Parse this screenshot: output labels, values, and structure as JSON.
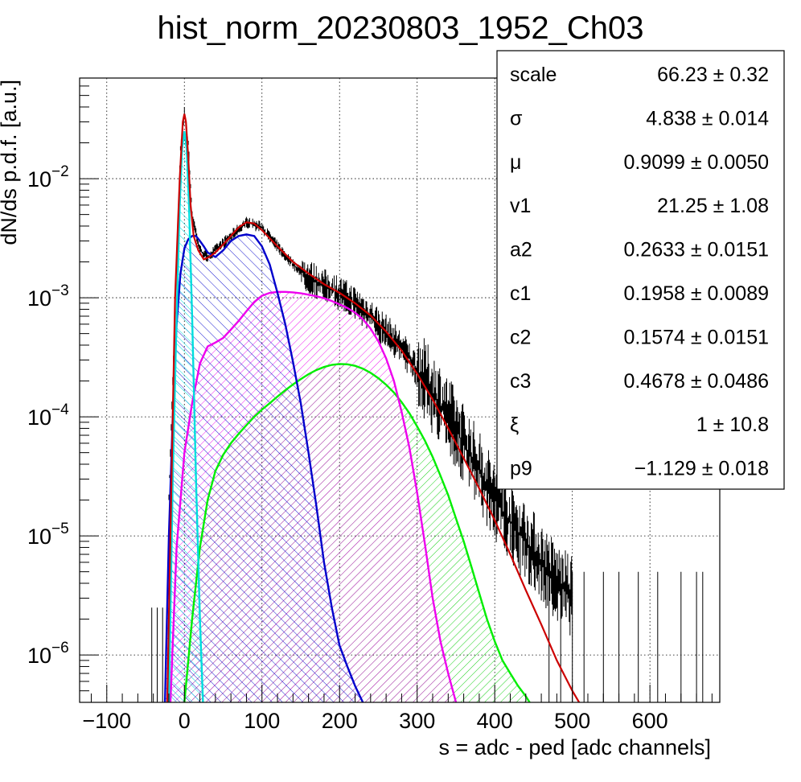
{
  "chart_data": {
    "type": "line",
    "title": "hist_norm_20230803_1952_Ch03",
    "xlabel": "s = adc - ped [adc channels]",
    "ylabel": "dN/ds p.d.f. [a.u.]",
    "xlim": [
      -135,
      690
    ],
    "ylim": [
      4e-07,
      0.07
    ],
    "y_scale": "log",
    "grid": true,
    "x_ticks": [
      {
        "value": -100,
        "label": "−100"
      },
      {
        "value": 0,
        "label": "0"
      },
      {
        "value": 100,
        "label": "100"
      },
      {
        "value": 200,
        "label": "200"
      },
      {
        "value": 300,
        "label": "300"
      },
      {
        "value": 400,
        "label": "400"
      },
      {
        "value": 500,
        "label": "500"
      },
      {
        "value": 600,
        "label": "600"
      }
    ],
    "y_ticks": [
      {
        "value": 1e-06,
        "base": "10",
        "exp": "−6"
      },
      {
        "value": 1e-05,
        "base": "10",
        "exp": "−5"
      },
      {
        "value": 0.0001,
        "base": "10",
        "exp": "−4"
      },
      {
        "value": 0.001,
        "base": "10",
        "exp": "−3"
      },
      {
        "value": 0.01,
        "base": "10",
        "exp": "−2"
      }
    ],
    "series": [
      {
        "color": "#000000",
        "style": "histogram",
        "x": [
          -20,
          -10,
          -5,
          0,
          5,
          10,
          20,
          30,
          40,
          60,
          80,
          100,
          120,
          140,
          160,
          180,
          200,
          220,
          240,
          260,
          280,
          300,
          320,
          340,
          360,
          380,
          400,
          420,
          440,
          460,
          480,
          500
        ],
        "y": [
          2e-05,
          0.002,
          0.018,
          0.036,
          0.02,
          0.005,
          0.0025,
          0.0022,
          0.0025,
          0.0033,
          0.0043,
          0.0039,
          0.0027,
          0.0019,
          0.0015,
          0.00125,
          0.0011,
          0.0009,
          0.0007,
          0.00052,
          0.00038,
          0.00025,
          0.00016,
          0.0001,
          6e-05,
          3.5e-05,
          2e-05,
          1.3e-05,
          9e-06,
          6e-06,
          4e-06,
          3e-06
        ]
      },
      {
        "color": "#cc0000",
        "style": "line",
        "x": [
          -22,
          -18,
          -12,
          -6,
          -2,
          0,
          2,
          5,
          8,
          12,
          18,
          25,
          32,
          40,
          50,
          60,
          70,
          80,
          90,
          100,
          120,
          140,
          160,
          180,
          200,
          220,
          240,
          260,
          280,
          300,
          320,
          340,
          360,
          380,
          400,
          420,
          440,
          460,
          480,
          500,
          520
        ],
        "y": [
          4e-07,
          1e-05,
          0.001,
          0.01,
          0.03,
          0.035,
          0.03,
          0.015,
          0.006,
          0.0033,
          0.0025,
          0.0021,
          0.0022,
          0.0024,
          0.0028,
          0.0033,
          0.0039,
          0.0043,
          0.0042,
          0.0037,
          0.0027,
          0.002,
          0.0016,
          0.0013,
          0.0011,
          0.0009,
          0.00071,
          0.00052,
          0.00036,
          0.00023,
          0.00014,
          8e-05,
          4.5e-05,
          2.5e-05,
          1.35e-05,
          7e-06,
          3.5e-06,
          1.8e-06,
          9e-07,
          5e-07,
          3e-07
        ]
      },
      {
        "color": "#00dddd",
        "style": "filled-hatch",
        "x": [
          -20,
          -15,
          -10,
          -6,
          -3,
          0,
          3,
          6,
          10,
          15,
          20,
          24
        ],
        "y": [
          4e-07,
          3e-05,
          0.0007,
          0.006,
          0.018,
          0.025,
          0.018,
          0.006,
          0.0007,
          3e-05,
          2e-06,
          4e-07
        ]
      },
      {
        "color": "#0000cc",
        "style": "filled-hatch",
        "x": [
          -25,
          -20,
          -15,
          -10,
          -5,
          0,
          5,
          10,
          15,
          20,
          25,
          30,
          40,
          50,
          60,
          70,
          80,
          90,
          100,
          110,
          120,
          130,
          140,
          150,
          160,
          170,
          180,
          190,
          200,
          210,
          220,
          230
        ],
        "y": [
          4e-07,
          1e-05,
          0.0001,
          0.0006,
          0.0016,
          0.0026,
          0.0031,
          0.0033,
          0.0033,
          0.003,
          0.0027,
          0.0024,
          0.0022,
          0.0025,
          0.003,
          0.0033,
          0.0034,
          0.0033,
          0.0027,
          0.0019,
          0.0011,
          0.0006,
          0.00029,
          0.00013,
          5e-05,
          1.8e-05,
          6e-06,
          2.5e-06,
          1.2e-06,
          8e-07,
          5.5e-07,
          4e-07
        ]
      },
      {
        "color": "#ee00ee",
        "style": "filled-hatch",
        "x": [
          -18,
          -10,
          0,
          10,
          20,
          30,
          40,
          50,
          60,
          70,
          80,
          90,
          100,
          110,
          120,
          130,
          140,
          150,
          160,
          170,
          180,
          190,
          200,
          210,
          220,
          230,
          240,
          250,
          260,
          270,
          280,
          290,
          300,
          310,
          320,
          330,
          340,
          350
        ],
        "y": [
          4e-07,
          8e-06,
          5e-05,
          0.00013,
          0.00028,
          0.00039,
          0.00042,
          0.00046,
          0.00054,
          0.00064,
          0.00077,
          0.00092,
          0.00104,
          0.0011,
          0.00112,
          0.00112,
          0.00111,
          0.00109,
          0.00106,
          0.00103,
          0.00099,
          0.00094,
          0.00088,
          0.00082,
          0.00075,
          0.00066,
          0.00055,
          0.00043,
          0.00031,
          0.0002,
          0.00011,
          5.5e-05,
          2.3e-05,
          8.5e-06,
          3e-06,
          1.3e-06,
          7e-07,
          4e-07
        ]
      },
      {
        "color": "#00ee00",
        "style": "filled-hatch",
        "x": [
          0,
          10,
          20,
          30,
          40,
          50,
          60,
          70,
          80,
          90,
          100,
          110,
          120,
          130,
          140,
          150,
          160,
          170,
          180,
          190,
          200,
          210,
          220,
          230,
          240,
          250,
          260,
          270,
          280,
          290,
          300,
          310,
          320,
          330,
          340,
          350,
          360,
          370,
          380,
          390,
          400,
          410,
          420,
          430,
          440,
          445
        ],
        "y": [
          4e-07,
          2e-06,
          8e-06,
          2e-05,
          3.5e-05,
          4.8e-05,
          6e-05,
          7.2e-05,
          8.5e-05,
          0.0001,
          0.000115,
          0.00013,
          0.000148,
          0.000167,
          0.000187,
          0.000207,
          0.000228,
          0.000247,
          0.000262,
          0.000273,
          0.000278,
          0.000276,
          0.000268,
          0.000254,
          0.000234,
          0.000211,
          0.000186,
          0.00016,
          0.000133,
          0.000107,
          8.3e-05,
          6.3e-05,
          4.6e-05,
          3.2e-05,
          2.2e-05,
          1.4e-05,
          9e-06,
          5.5e-06,
          3.3e-06,
          2e-06,
          1.3e-06,
          9e-07,
          7e-07,
          5.5e-07,
          4.5e-07,
          4e-07
        ]
      }
    ],
    "stats_box": {
      "position": "top-right",
      "rows": [
        {
          "name": "scale",
          "value": "66.23 ± 0.32"
        },
        {
          "name": "σ",
          "value": "4.838 ± 0.014"
        },
        {
          "name": "μ",
          "value": "0.9099 ± 0.0050"
        },
        {
          "name": "v1",
          "value": "21.25 ± 1.08"
        },
        {
          "name": "a2",
          "value": "0.2633 ± 0.0151"
        },
        {
          "name": "c1",
          "value": "0.1958 ± 0.0089"
        },
        {
          "name": "c2",
          "value": "0.1574 ± 0.0151"
        },
        {
          "name": "c3",
          "value": "0.4678 ± 0.0486"
        },
        {
          "name": "ξ",
          "value": "1 ± 10.8"
        },
        {
          "name": "p9",
          "value": "−1.129 ± 0.018"
        }
      ]
    }
  }
}
